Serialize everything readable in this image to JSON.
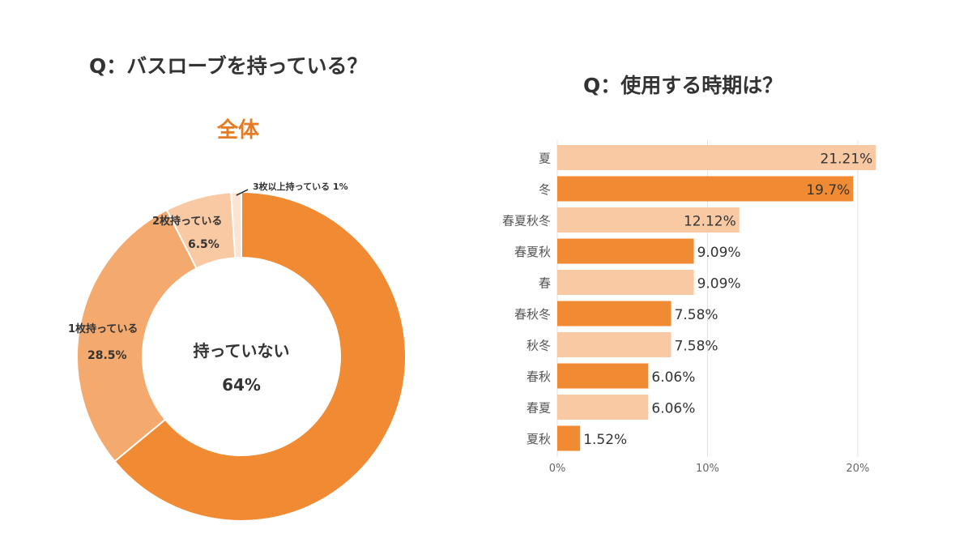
{
  "colors": {
    "dark": "#f08a33",
    "light": "#f9c9a3",
    "mid": "#f4a96e",
    "pale": "#fbe4d2",
    "accent_text": "#e57b22"
  },
  "left": {
    "title": "Q：バスローブを持っている？",
    "subtitle": "全体",
    "chart_data": {
      "type": "pie",
      "donut": true,
      "slices": [
        {
          "label": "持っていない",
          "value": 64,
          "value_label": "64%",
          "color": "#f08a33"
        },
        {
          "label": "1枚持っている",
          "value": 28.5,
          "value_label": "28.5%",
          "color": "#f4a96e"
        },
        {
          "label": "2枚持っている",
          "value": 6.5,
          "value_label": "6.5%",
          "color": "#f9c9a3"
        },
        {
          "label": "3枚以上持っている",
          "value": 1,
          "value_label": "1%",
          "color": "#fbe4d2"
        }
      ]
    }
  },
  "right": {
    "title": "Q：使用する時期は？",
    "chart_data": {
      "type": "bar",
      "orientation": "horizontal",
      "categories": [
        "夏",
        "冬",
        "春夏秋冬",
        "春夏秋",
        "春",
        "春秋冬",
        "秋冬",
        "春秋",
        "春夏",
        "夏秋"
      ],
      "values": [
        21.21,
        19.7,
        12.12,
        9.09,
        9.09,
        7.58,
        7.58,
        6.06,
        6.06,
        1.52
      ],
      "value_labels": [
        "21.21%",
        "19.7%",
        "12.12%",
        "9.09%",
        "9.09%",
        "7.58%",
        "7.58%",
        "6.06%",
        "6.06%",
        "1.52%"
      ],
      "colors": [
        "#f9c9a3",
        "#f08a33",
        "#f9c9a3",
        "#f08a33",
        "#f9c9a3",
        "#f08a33",
        "#f9c9a3",
        "#f08a33",
        "#f9c9a3",
        "#f08a33"
      ],
      "xlim": [
        0,
        22
      ],
      "xticks": [
        0,
        10,
        20
      ],
      "xtick_labels": [
        "0%",
        "10%",
        "20%"
      ],
      "grid": true
    }
  }
}
